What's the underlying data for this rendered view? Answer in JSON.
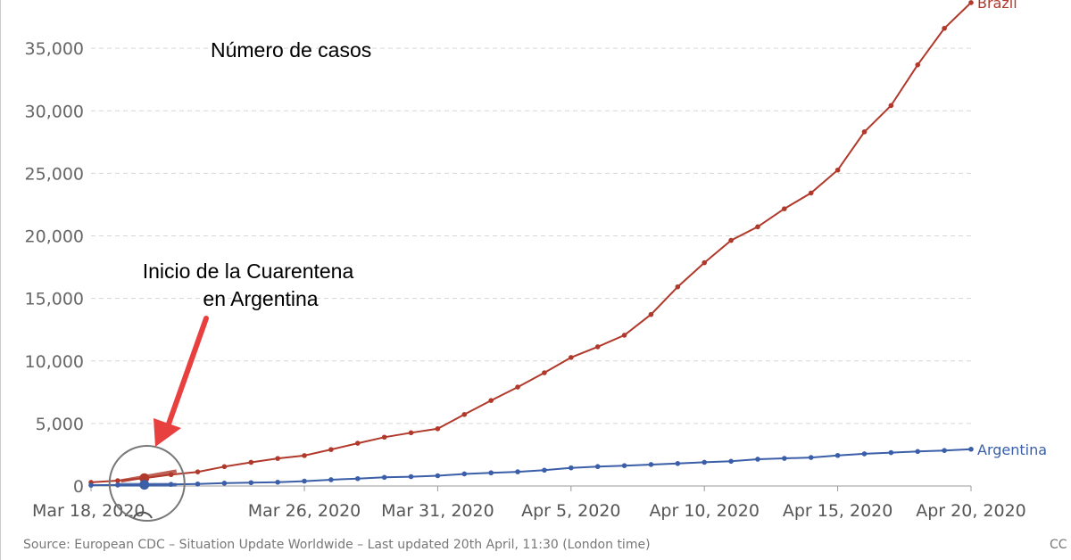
{
  "chart_data": {
    "type": "line",
    "title": "Número de casos",
    "x": [
      "Mar 18, 2020",
      "Mar 19, 2020",
      "Mar 20, 2020",
      "Mar 21, 2020",
      "Mar 22, 2020",
      "Mar 23, 2020",
      "Mar 24, 2020",
      "Mar 25, 2020",
      "Mar 26, 2020",
      "Mar 27, 2020",
      "Mar 28, 2020",
      "Mar 29, 2020",
      "Mar 30, 2020",
      "Mar 31, 2020",
      "Apr 1, 2020",
      "Apr 2, 2020",
      "Apr 3, 2020",
      "Apr 4, 2020",
      "Apr 5, 2020",
      "Apr 6, 2020",
      "Apr 7, 2020",
      "Apr 8, 2020",
      "Apr 9, 2020",
      "Apr 10, 2020",
      "Apr 11, 2020",
      "Apr 12, 2020",
      "Apr 13, 2020",
      "Apr 14, 2020",
      "Apr 15, 2020",
      "Apr 16, 2020",
      "Apr 17, 2020",
      "Apr 18, 2020",
      "Apr 19, 2020",
      "Apr 20, 2020"
    ],
    "x_tick_labels": [
      "Mar 18, 2020",
      "Mar 26, 2020",
      "Mar 31, 2020",
      "Apr 5, 2020",
      "Apr 10, 2020",
      "Apr 15, 2020",
      "Apr 20, 2020"
    ],
    "x_tick_indices": [
      0,
      8,
      13,
      18,
      23,
      28,
      33
    ],
    "y_ticks": [
      0,
      5000,
      10000,
      15000,
      20000,
      25000,
      30000,
      35000
    ],
    "y_tick_labels": [
      "0",
      "5,000",
      "10,000",
      "15,000",
      "20,000",
      "25,000",
      "30,000",
      "35,000"
    ],
    "ylim": [
      0,
      38650
    ],
    "grid": true,
    "series": [
      {
        "name": "Brazil",
        "color": "#b0392b",
        "values": [
          291,
          428,
          621,
          904,
          1128,
          1546,
          1891,
          2201,
          2433,
          2915,
          3417,
          3904,
          4256,
          4579,
          5717,
          6836,
          7910,
          9056,
          10278,
          11130,
          12056,
          13717,
          15927,
          17857,
          19638,
          20727,
          22169,
          23430,
          25262,
          28320,
          30425,
          33682,
          36599,
          38654
        ]
      },
      {
        "name": "Argentina",
        "color": "#3a5ea8",
        "values": [
          65,
          79,
          97,
          128,
          158,
          225,
          266,
          301,
          387,
          502,
          589,
          690,
          745,
          820,
          966,
          1054,
          1133,
          1265,
          1451,
          1554,
          1628,
          1715,
          1795,
          1894,
          1975,
          2142,
          2208,
          2277,
          2443,
          2571,
          2669,
          2758,
          2839,
          2941
        ]
      }
    ],
    "annotations": [
      {
        "text_line1": "Inicio de la Cuarentena",
        "text_line2": "en Argentina",
        "at_index": 2
      }
    ],
    "source": "Source: European CDC – Situation Update Worldwide – Last updated 20th April, 11:30 (London time)",
    "license": "CC"
  }
}
